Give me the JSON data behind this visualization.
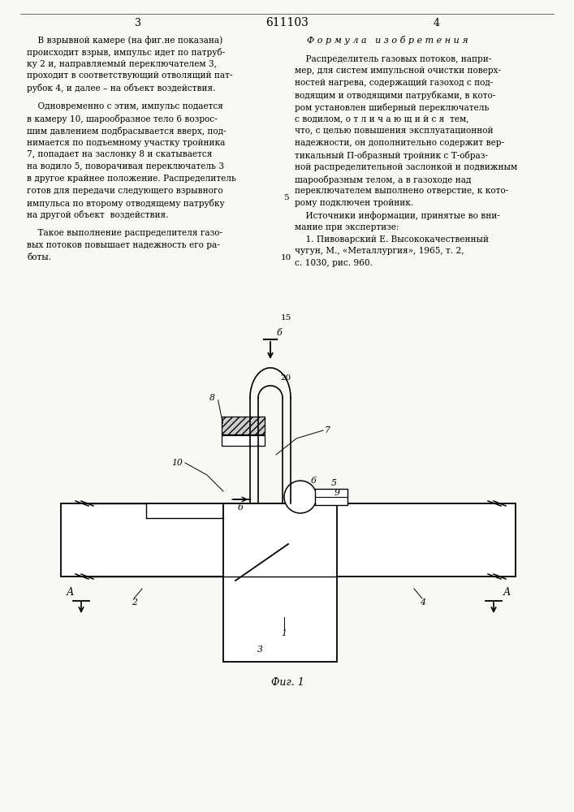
{
  "bg_color": "#f8f8f5",
  "page_number_left": "3",
  "page_number_center": "611103",
  "page_number_right": "4",
  "left_col_lines": [
    "    В взрывной камере (на фиг.не показана)",
    "происходит взрыв, импульс идет по патруб-",
    "ку 2 и, направляемый переключателем 3,",
    "проходит в соответствующий отволящий пат-",
    "рубок 4, и далее – на объект воздействия.",
    "",
    "    Одновременно с этим, импульс подается",
    "в камеру 10, шарообразное тело 6 возрос-",
    "шим давлением подбрасывается вверх, под-",
    "нимается по подъемному участку тройника",
    "7, попадает на заслонку 8 и скатывается",
    "на водило 5, поворачивая переключатель 3",
    "в другое крайнее положение. Распределитель",
    "готов для передачи следующего взрывного",
    "импульса по второму отводящему патрубку",
    "на другой объект  воздействия.",
    "",
    "    Такое выполнение распределителя газо-",
    "вых потоков повышает надежность его ра-",
    "боты."
  ],
  "right_col_title": "Ф о р м у л а   и з о б р е т е н и я",
  "right_col_lines": [
    "    Распределитель газовых потоков, напри-",
    "мер, для систем импульсной очистки поверх-",
    "ностей нагрева, содержащий газоход с под-",
    "водящим и отводящими патрубками, в кото-",
    "ром установлен шиберный переключатель",
    "с водилом, о т л и ч а ю щ и й с я  тем,",
    "что, с целью повышения эксплуатационной",
    "надежности, он дополнительно содержит вер-",
    "тикальный П-образный тройник с Т-образ-",
    "ной распределительной заслонкой и подвижным",
    "шарообразным телом, а в газоходе над",
    "переключателем выполнено отверстие, к кото-",
    "рому подключен тройник.",
    "    Источники информации, принятые во вни-",
    "мание при экспертизе:",
    "    1. Пивоварский Е. Высококачественный",
    "чугун, М., «Металлургия», 1965, т. 2,",
    "с. 1030, рис. 960."
  ],
  "fig_caption": "Фиг. 1"
}
